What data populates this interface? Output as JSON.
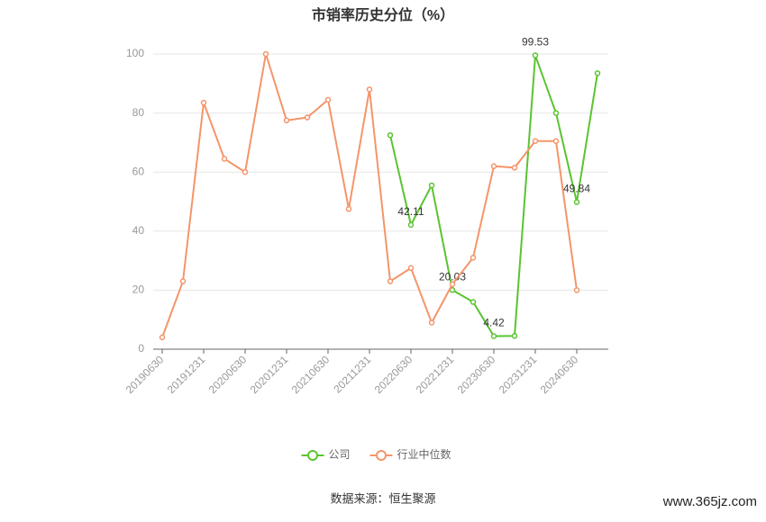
{
  "chart_data": {
    "type": "line",
    "title": "市销率历史分位（%）",
    "categories": [
      "20190630",
      null,
      "20191231",
      null,
      "20200630",
      null,
      "20201231",
      null,
      "20210630",
      null,
      "20211231",
      null,
      "20220630",
      null,
      "20221231",
      null,
      "20230630",
      null,
      "20231231",
      null,
      "20240630",
      null
    ],
    "series": [
      {
        "name": "公司",
        "color": "#5ac431",
        "values": [
          null,
          null,
          null,
          null,
          null,
          null,
          null,
          null,
          null,
          null,
          null,
          72.5,
          42.11,
          55.5,
          20.03,
          16,
          4.42,
          4.5,
          99.53,
          80,
          49.84,
          93.5
        ],
        "value_labels": [
          null,
          null,
          null,
          null,
          null,
          null,
          null,
          null,
          null,
          null,
          null,
          null,
          "42.11",
          null,
          "20.03",
          null,
          "4.42",
          null,
          "99.53",
          null,
          "49.84",
          null
        ]
      },
      {
        "name": "行业中位数",
        "color": "#f4956a",
        "values": [
          4,
          23,
          83.5,
          64.5,
          60,
          100,
          77.5,
          78.5,
          84.5,
          47.5,
          88,
          23,
          27.5,
          9,
          22,
          31,
          62,
          61.5,
          70.5,
          70.5,
          20,
          null
        ]
      }
    ],
    "ylim": [
      0,
      100
    ],
    "yticks": [
      0,
      20,
      40,
      60,
      80,
      100
    ],
    "grid": true,
    "legend": "bottom",
    "source": "数据来源：恒生聚源",
    "watermark": "www.365jz.com"
  }
}
